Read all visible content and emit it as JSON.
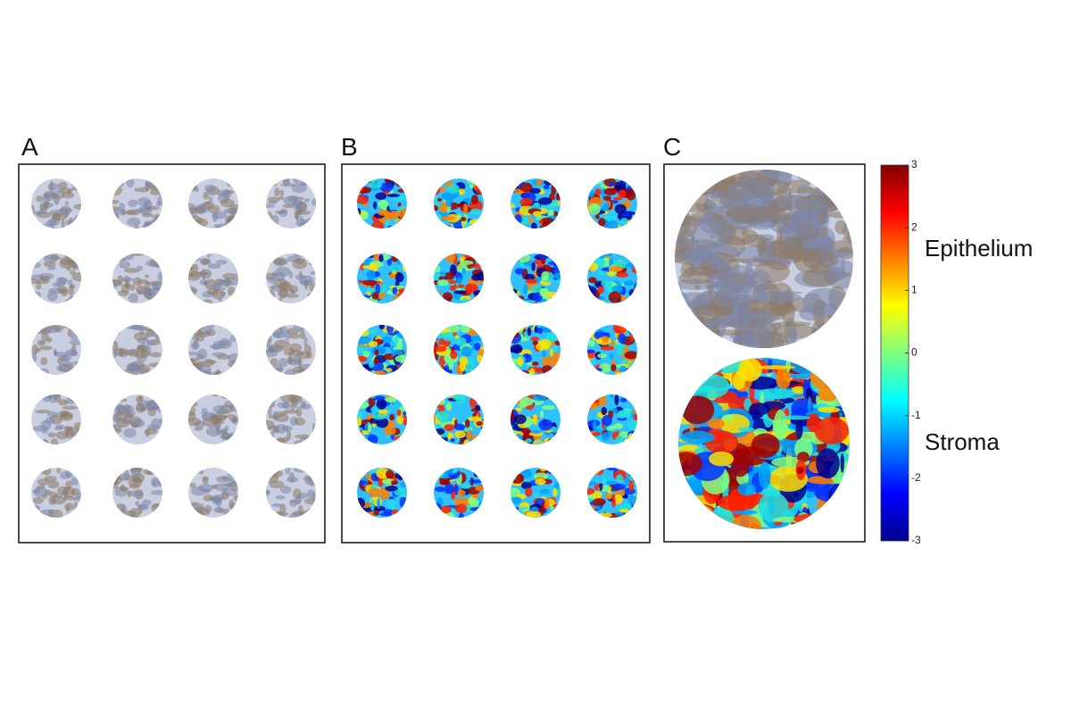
{
  "panels": [
    {
      "label": "A"
    },
    {
      "label": "B"
    },
    {
      "label": "C"
    }
  ],
  "colorbar": {
    "lim": [
      -3,
      3
    ],
    "ticks": [
      -3,
      -2,
      -1,
      0,
      1,
      2,
      3
    ],
    "annotations": [
      "Epithelium",
      "Stroma"
    ]
  }
}
